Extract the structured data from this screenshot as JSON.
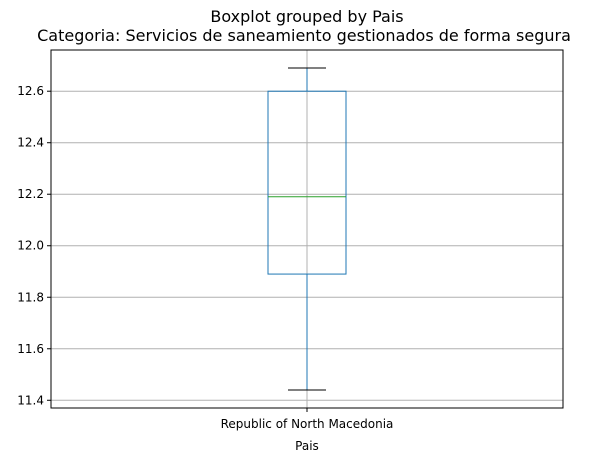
{
  "chart_data": {
    "type": "box",
    "title": "Boxplot grouped by Pais",
    "subtitle": "Categoria: Servicios de saneamiento gestionados de forma segura",
    "xlabel": "Pais",
    "ylabel": "",
    "categories": [
      "Republic of North Macedonia"
    ],
    "boxes": [
      {
        "category": "Republic of North Macedonia",
        "whisker_low": 11.44,
        "q1": 11.89,
        "median": 12.19,
        "q3": 12.6,
        "whisker_high": 12.69
      }
    ],
    "ylim": [
      11.37,
      12.76
    ],
    "yticks": [
      11.4,
      11.6,
      11.8,
      12.0,
      12.2,
      12.4,
      12.6
    ],
    "ytick_labels": [
      "11.4",
      "11.6",
      "11.8",
      "12.0",
      "12.2",
      "12.4",
      "12.6"
    ],
    "grid": true,
    "colors": {
      "box": "#1f77b4",
      "median": "#2ca02c",
      "whisker": "#1f77b4",
      "cap": "#000000",
      "grid": "#b0b0b0"
    }
  }
}
